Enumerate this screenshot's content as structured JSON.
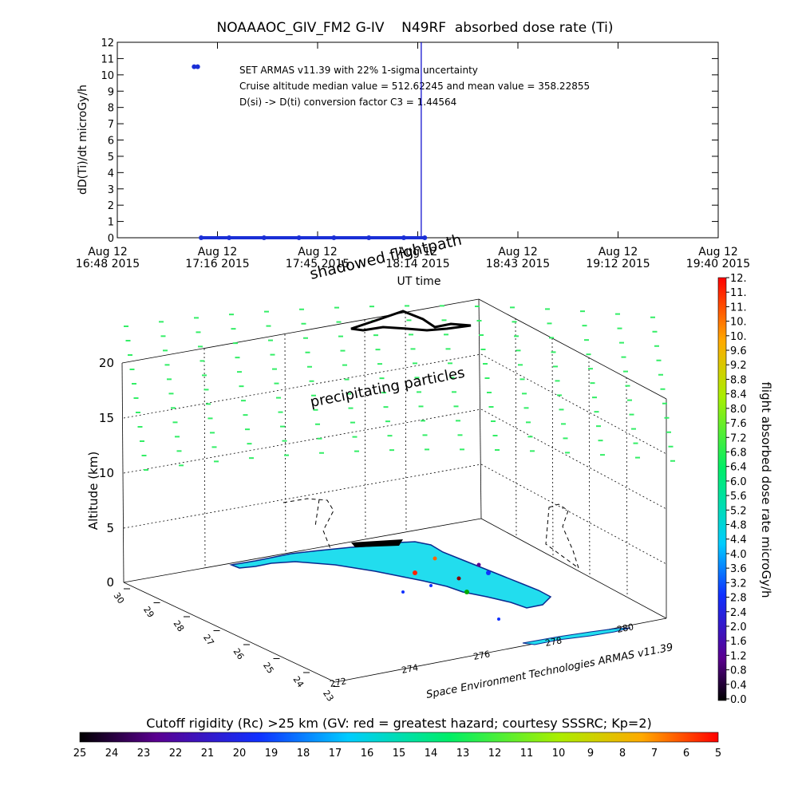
{
  "chart_data": [
    {
      "type": "scatter",
      "title": "NOAAAOC_GIV_FM2 G-IV    N49RF  absorbed dose rate (Ti)",
      "ylabel": "dD(Ti)/dt microGy/h",
      "xlabel": "UT time",
      "ylim": [
        0,
        12
      ],
      "yticks": [
        "0",
        "1",
        "2",
        "3",
        "4",
        "5",
        "6",
        "7",
        "8",
        "9",
        "10",
        "11",
        "12"
      ],
      "xticks": [
        {
          "date": "Aug 12",
          "time": "16:48 2015"
        },
        {
          "date": "Aug 12",
          "time": "17:16 2015"
        },
        {
          "date": "Aug 12",
          "time": "17:45 2015"
        },
        {
          "date": "Aug 12",
          "time": "18:14 2015"
        },
        {
          "date": "Aug 12",
          "time": "18:43 2015"
        },
        {
          "date": "Aug 12",
          "time": "19:12 2015"
        },
        {
          "date": "Aug 12",
          "time": "19:40 2015"
        }
      ],
      "annotations": [
        "SET ARMAS v11.39 with 22% 1-sigma uncertainty",
        "Cruise altitude median value = 512.62245 and mean value = 358.22855",
        "D(si) -> D(ti) conversion factor C3 = 1.44564"
      ],
      "series": [
        {
          "color": "#1a2fd6",
          "points": [
            [
              "17:10",
              10.5
            ],
            [
              "17:11",
              10.5
            ],
            [
              "17:12",
              0
            ],
            [
              "17:20",
              0
            ],
            [
              "17:30",
              0
            ],
            [
              "17:40",
              0
            ],
            [
              "17:50",
              0
            ],
            [
              "18:00",
              0
            ],
            [
              "18:10",
              0
            ],
            [
              "18:16",
              0
            ]
          ]
        }
      ],
      "cursor_time": "18:15"
    },
    {
      "type": "scatter",
      "zlabel": "Altitude (km)",
      "zticks": [
        "0",
        "5",
        "10",
        "15",
        "20"
      ],
      "lat_ticks": [
        "23",
        "24",
        "25",
        "26",
        "27",
        "28",
        "29",
        "30"
      ],
      "lon_ticks": [
        "272",
        "274",
        "276",
        "278",
        "280"
      ],
      "labels": {
        "shadowed": "shadowed flightpath",
        "precip": "precipitating particles",
        "credit": "Space Environment Technologies ARMAS v11.39"
      }
    },
    {
      "type": "heatmap",
      "title": "flight absorbed dose rate microGy/h",
      "ticks": [
        "0.0",
        "0.4",
        "0.8",
        "1.2",
        "1.6",
        "2.0",
        "2.4",
        "2.8",
        "3.2",
        "3.6",
        "4.0",
        "4.4",
        "4.8",
        "5.2",
        "5.6",
        "6.0",
        "6.4",
        "6.8",
        "7.2",
        "7.6",
        "8.0",
        "8.4",
        "8.8",
        "9.2",
        "9.6",
        "10.",
        "10.",
        "11.",
        "11.",
        "12."
      ]
    },
    {
      "type": "heatmap",
      "title": "Cutoff rigidity (Rc) >25 km (GV: red = greatest hazard; courtesy SSSRC; Kp=2)",
      "ticks": [
        "25",
        "24",
        "23",
        "22",
        "21",
        "20",
        "19",
        "18",
        "17",
        "16",
        "15",
        "14",
        "13",
        "12",
        "11",
        "10",
        "9",
        "8",
        "7",
        "6",
        "5"
      ]
    }
  ],
  "colors": {
    "dose_points": "#1a2fd6",
    "arrows": "#33ee66",
    "land": "#22ddee",
    "cursor": "#0000cc"
  }
}
